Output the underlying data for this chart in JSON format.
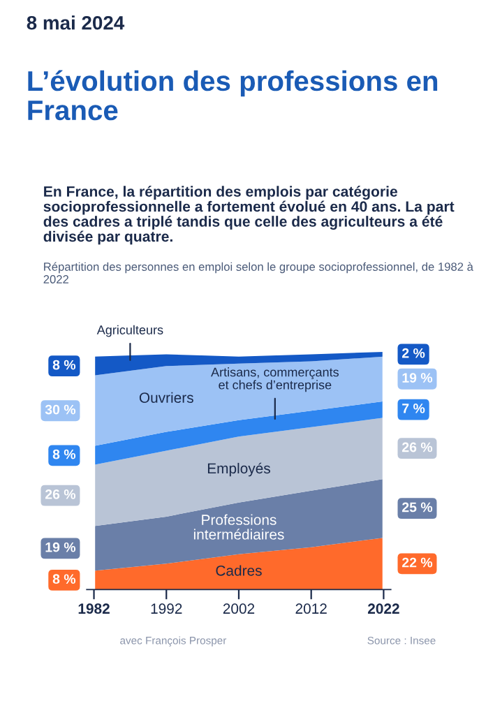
{
  "chart_data": {
    "type": "area",
    "stacked": true,
    "title": "L’évolution des professions en France",
    "subtitle": "En France, la répartition des emplois par catégorie socioprofessionnelle a fortement évolué en 40 ans. La part des cadres a triplé tandis que celle des agriculteurs a été divisée par quatre.",
    "annotations": [
      "8 mai 2024",
      "Répartition des personnes en emploi selon le groupe socioprofessionnel, de 1982 à 2022",
      "avec François Prosper",
      "Source : Insee"
    ],
    "x": [
      1982,
      1992,
      2002,
      2012,
      2022
    ],
    "xlim": [
      1981,
      2023
    ],
    "xticks": [
      1982,
      1992,
      2002,
      2012,
      2022
    ],
    "ylim": [
      0,
      101
    ],
    "tick_labels": "x",
    "grid": false,
    "ref_lines": [
      {
        "axis": "x",
        "value": 1982,
        "color": "#ffffff"
      },
      {
        "axis": "x",
        "value": 2022,
        "color": "#ffffff"
      }
    ],
    "series": [
      {
        "name": "Cadres",
        "color": "#ff6a2b",
        "values": [
          8,
          11,
          15,
          18,
          22
        ],
        "value_labels": [
          "8 %",
          null,
          null,
          null,
          "22 %"
        ]
      },
      {
        "name": "Professions intermédiaires",
        "color": "#6a7fa8",
        "values": [
          19,
          20,
          22,
          24,
          25
        ],
        "value_labels": [
          "19 %",
          null,
          null,
          null,
          "25 %"
        ]
      },
      {
        "name": "Employés",
        "color": "#b9c4d6",
        "values": [
          26,
          28,
          28,
          27,
          26
        ],
        "value_labels": [
          "26 %",
          null,
          null,
          null,
          "26 %"
        ]
      },
      {
        "name": "Artisans, commerçants et chefs d’entreprise",
        "color": "#2f86f0",
        "values": [
          8,
          8,
          7,
          7,
          7
        ],
        "value_labels": [
          "8 %",
          null,
          null,
          null,
          "7 %"
        ]
      },
      {
        "name": "Ouvriers",
        "color": "#9cc2f5",
        "values": [
          30,
          28,
          24,
          21,
          19
        ],
        "value_labels": [
          "30 %",
          null,
          null,
          null,
          "19 %"
        ]
      },
      {
        "name": "Agriculteurs",
        "color": "#1459c6",
        "values": [
          8,
          5,
          3,
          3,
          2
        ],
        "value_labels": [
          "8 %",
          null,
          null,
          null,
          "2 %"
        ]
      }
    ]
  }
}
